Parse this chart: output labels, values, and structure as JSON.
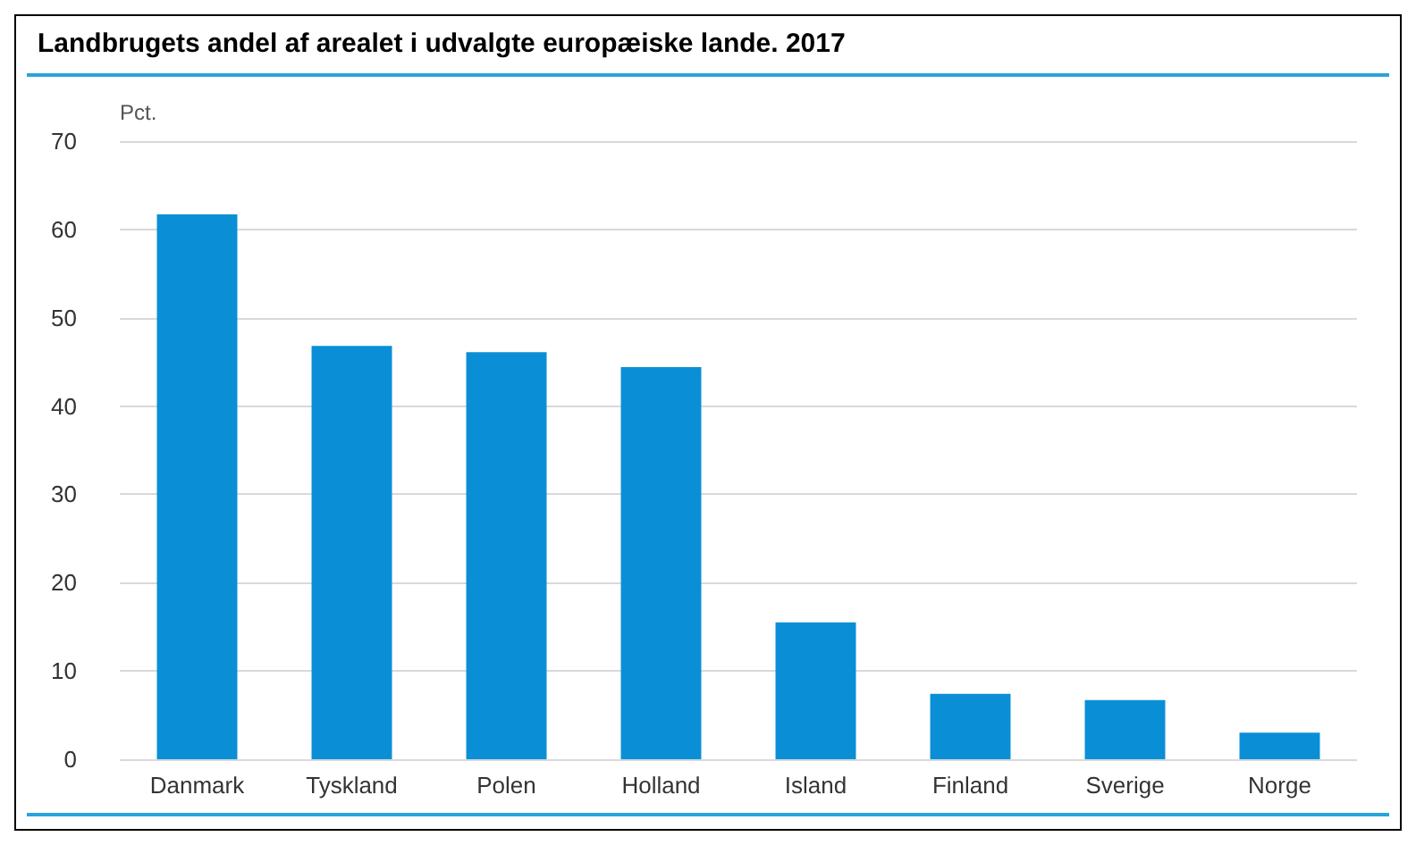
{
  "chart_data": {
    "type": "bar",
    "title": "Landbrugets andel af arealet i udvalgte europæiske lande. 2017",
    "ylabel": "Pct.",
    "categories": [
      "Danmark",
      "Tyskland",
      "Polen",
      "Holland",
      "Island",
      "Finland",
      "Sverige",
      "Norge"
    ],
    "values": [
      61.7,
      46.8,
      46.1,
      44.4,
      15.5,
      7.4,
      6.7,
      3.0
    ],
    "color": "#0a8fd6",
    "ylim": [
      0,
      70
    ],
    "yticks": [
      0,
      10,
      20,
      30,
      40,
      50,
      60,
      70
    ],
    "grid": "y"
  }
}
